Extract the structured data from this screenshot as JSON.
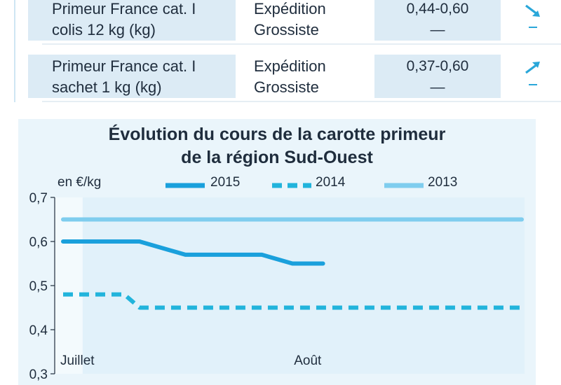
{
  "price_table": {
    "rows": [
      {
        "product_line1": "Primeur France cat. I",
        "product_line2": "colis 12 kg (kg)",
        "market_line1": "Expédition",
        "market_line2": "Grossiste",
        "price_expedition": "0,44-0,60",
        "price_grossiste": "—",
        "trend_expedition": "arrow-down-right-icon",
        "trend_grossiste": "–"
      },
      {
        "product_line1": "Primeur France cat. I",
        "product_line2": "sachet 1 kg (kg)",
        "market_line1": "Expédition",
        "market_line2": "Grossiste",
        "price_expedition": "0,37-0,60",
        "price_grossiste": "—",
        "trend_expedition": "arrow-up-right-icon",
        "trend_grossiste": "–"
      }
    ]
  },
  "colors": {
    "accent": "#2aa7d9",
    "series_2015": "#1aa0dc",
    "series_2014": "#22b4dc",
    "series_2013": "#7fcdee",
    "panel_bg": "#eaf5fb",
    "cell_bg": "#dcebf5"
  },
  "chart_data": {
    "type": "line",
    "title_line1": "Évolution du cours de la carotte primeur",
    "title_line2": "de la région Sud-Ouest",
    "ylabel": "en €/kg",
    "ylim": [
      0.3,
      0.7
    ],
    "y_ticks": [
      "0,7",
      "0,6",
      "0,5",
      "0,4",
      "0,3"
    ],
    "y_tick_values": [
      0.7,
      0.6,
      0.5,
      0.4,
      0.3
    ],
    "x_count": 31,
    "month_labels": [
      {
        "label": "Juillet",
        "at": 0
      },
      {
        "label": "Août",
        "at": 16
      }
    ],
    "legend_position": "top",
    "series": [
      {
        "name": "2015",
        "style": "solid",
        "x": [
          0,
          5,
          7,
          8,
          13,
          15,
          17
        ],
        "y": [
          0.6,
          0.6,
          0.58,
          0.57,
          0.57,
          0.55,
          0.55
        ]
      },
      {
        "name": "2014",
        "style": "dashed",
        "x": [
          0,
          4,
          5,
          30
        ],
        "y": [
          0.48,
          0.48,
          0.45,
          0.45
        ]
      },
      {
        "name": "2013",
        "style": "solid-light",
        "x": [
          0,
          30
        ],
        "y": [
          0.65,
          0.65
        ]
      }
    ]
  }
}
